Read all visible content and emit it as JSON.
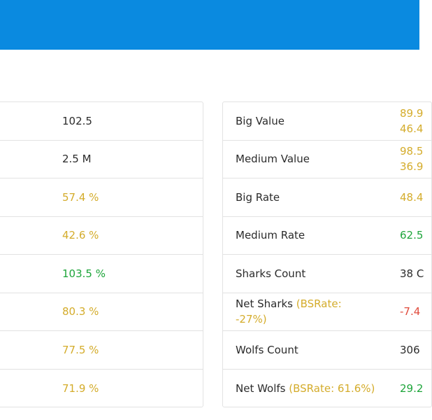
{
  "colors": {
    "header": "#0a8ae0",
    "gold": "#d4ac2b",
    "green": "#1da53a",
    "red": "#e04b3c"
  },
  "left_table": {
    "values": [
      {
        "text": "102.5",
        "color": "dark"
      },
      {
        "text": "2.5 M",
        "color": "dark"
      },
      {
        "text": "57.4 %",
        "color": "gold"
      },
      {
        "text": "42.6 %",
        "color": "gold"
      },
      {
        "text": "103.5 %",
        "color": "green"
      },
      {
        "text": "80.3 %",
        "color": "gold"
      },
      {
        "text": "77.5 %",
        "color": "gold"
      },
      {
        "text": "71.9 %",
        "color": "gold"
      }
    ]
  },
  "right_table": {
    "rows": [
      {
        "label": "Big Value",
        "value_line1": "89.9",
        "value_line2": "46.4"
      },
      {
        "label": "Medium Value",
        "value_line1": "98.5",
        "value_line2": "36.9"
      },
      {
        "label": "Big Rate",
        "value": "48.4"
      },
      {
        "label": "Medium Rate",
        "value": "62.5"
      },
      {
        "label": "Sharks Count",
        "value": "38 C"
      },
      {
        "label": "Net Sharks",
        "hint": "(BSRate: -27%)",
        "value": "-7.4"
      },
      {
        "label": "Wolfs Count",
        "value": "306"
      },
      {
        "label": "Net Wolfs",
        "hint": "(BSRate: 61.6%)",
        "value": "29.2"
      }
    ]
  }
}
